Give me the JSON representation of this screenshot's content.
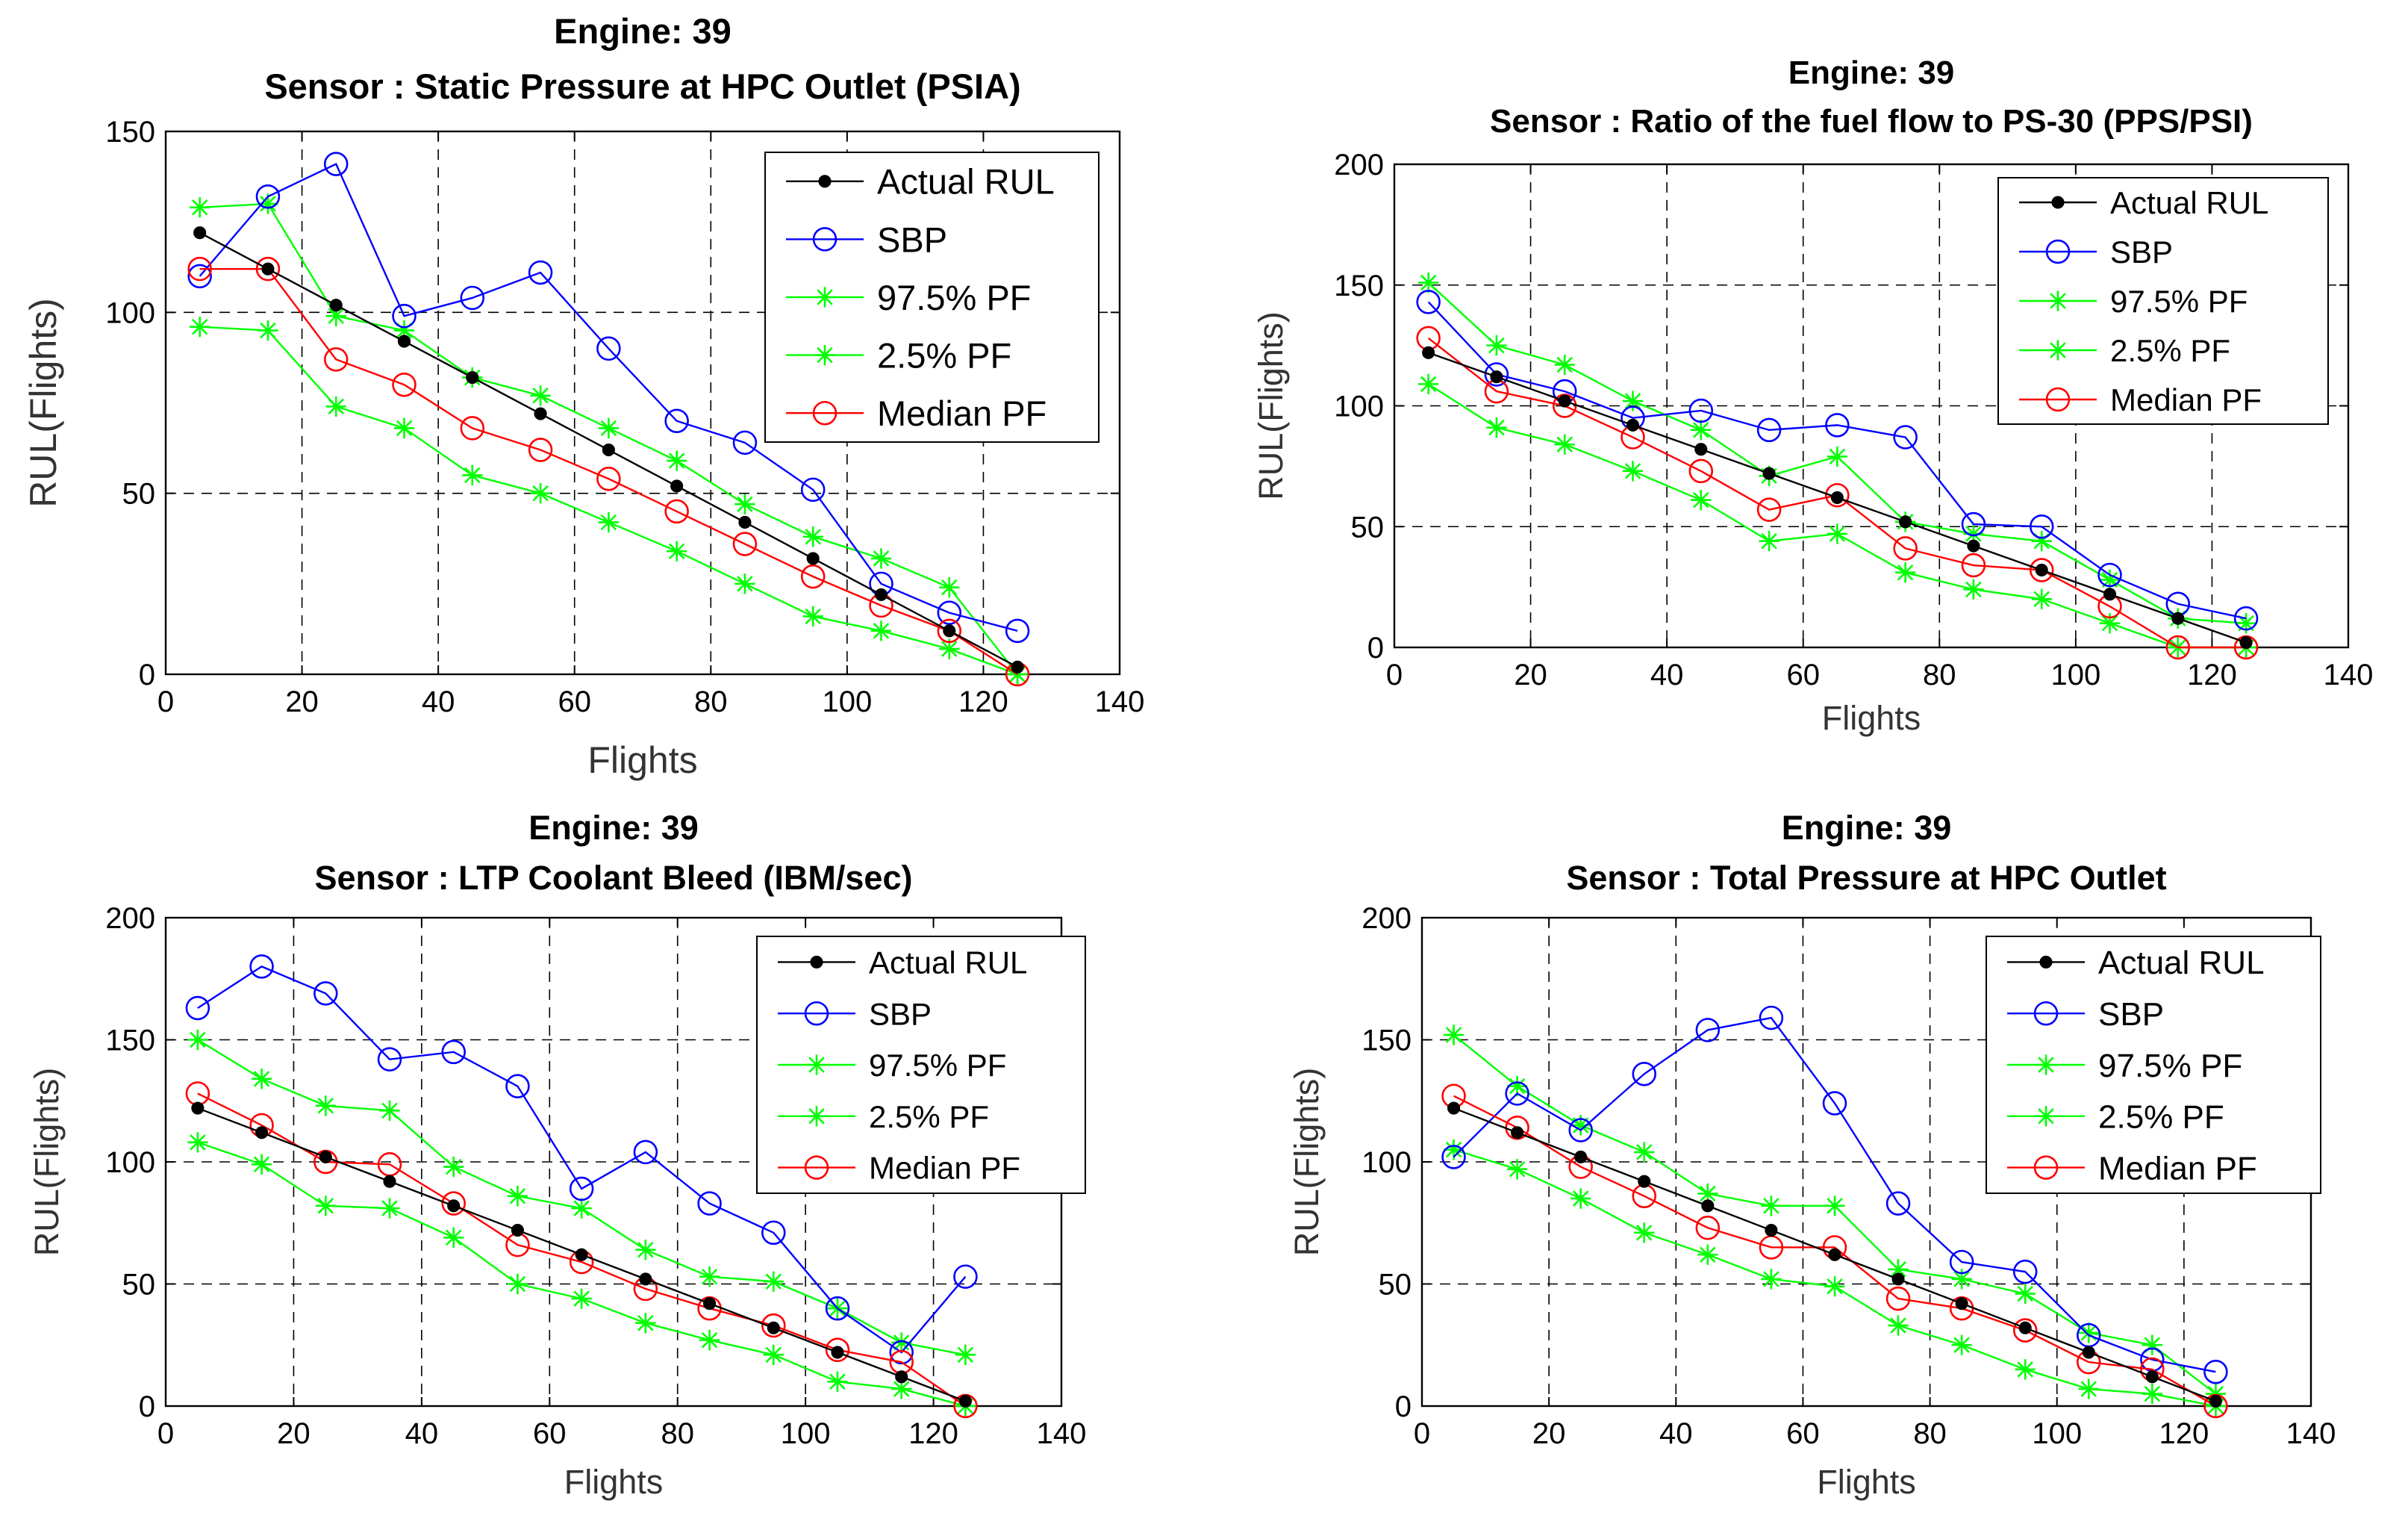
{
  "chart_data": [
    {
      "type": "line",
      "title": [
        "Engine: 39",
        "Sensor : Static Pressure at HPC Outlet (PSIA)"
      ],
      "xlabel": "Flights",
      "ylabel": "RUL(Flights)",
      "xlim": [
        0,
        140
      ],
      "ylim": [
        0,
        150
      ],
      "xticks": [
        0,
        20,
        40,
        60,
        80,
        100,
        120,
        140
      ],
      "yticks": [
        0,
        50,
        100,
        150
      ],
      "grid": true,
      "legend_position": "top-right",
      "x": [
        5,
        15,
        25,
        35,
        45,
        55,
        65,
        75,
        85,
        95,
        105,
        115,
        125
      ],
      "series": [
        {
          "name": "Actual RUL",
          "color": "#000000",
          "marker": "dot",
          "values": [
            122,
            112,
            102,
            92,
            82,
            72,
            62,
            52,
            42,
            32,
            22,
            12,
            2
          ]
        },
        {
          "name": "SBP",
          "color": "#0000ff",
          "marker": "circle",
          "values": [
            110,
            132,
            141,
            99,
            104,
            111,
            90,
            70,
            64,
            51,
            25,
            17,
            12
          ]
        },
        {
          "name": "97.5% PF",
          "color": "#00ff00",
          "marker": "star",
          "values": [
            129,
            130,
            99,
            95,
            82,
            77,
            68,
            59,
            47,
            38,
            32,
            24,
            0
          ]
        },
        {
          "name": "2.5% PF",
          "color": "#00ff00",
          "marker": "star",
          "values": [
            96,
            95,
            74,
            68,
            55,
            50,
            42,
            34,
            25,
            16,
            12,
            7,
            0
          ]
        },
        {
          "name": "Median PF",
          "color": "#ff0000",
          "marker": "circle",
          "values": [
            112,
            112,
            87,
            80,
            68,
            62,
            54,
            45,
            36,
            27,
            19,
            12,
            0
          ]
        }
      ]
    },
    {
      "type": "line",
      "title": [
        "Engine: 39",
        "Sensor : Ratio of the fuel flow to PS-30 (PPS/PSI)"
      ],
      "xlabel": "Flights",
      "ylabel": "RUL(Flights)",
      "xlim": [
        0,
        140
      ],
      "ylim": [
        0,
        200
      ],
      "xticks": [
        0,
        20,
        40,
        60,
        80,
        100,
        120,
        140
      ],
      "yticks": [
        0,
        50,
        100,
        150,
        200
      ],
      "grid": true,
      "legend_position": "top-right",
      "x": [
        5,
        15,
        25,
        35,
        45,
        55,
        65,
        75,
        85,
        95,
        105,
        115,
        125
      ],
      "series": [
        {
          "name": "Actual RUL",
          "color": "#000000",
          "marker": "dot",
          "values": [
            122,
            112,
            102,
            92,
            82,
            72,
            62,
            52,
            42,
            32,
            22,
            12,
            2
          ]
        },
        {
          "name": "SBP",
          "color": "#0000ff",
          "marker": "circle",
          "values": [
            143,
            113,
            106,
            95,
            98,
            90,
            92,
            87,
            51,
            50,
            30,
            18,
            12
          ]
        },
        {
          "name": "97.5% PF",
          "color": "#00ff00",
          "marker": "star",
          "values": [
            151,
            125,
            117,
            102,
            90,
            71,
            79,
            52,
            47,
            44,
            28,
            12,
            10
          ]
        },
        {
          "name": "2.5% PF",
          "color": "#00ff00",
          "marker": "star",
          "values": [
            109,
            91,
            84,
            73,
            61,
            44,
            47,
            31,
            24,
            20,
            10,
            0,
            0
          ]
        },
        {
          "name": "Median PF",
          "color": "#ff0000",
          "marker": "circle",
          "values": [
            128,
            106,
            100,
            87,
            73,
            57,
            63,
            41,
            34,
            32,
            17,
            0,
            0
          ]
        }
      ]
    },
    {
      "type": "line",
      "title": [
        "Engine: 39",
        "Sensor : LTP Coolant Bleed (IBM/sec)"
      ],
      "xlabel": "Flights",
      "ylabel": "RUL(Flights)",
      "xlim": [
        0,
        140
      ],
      "ylim": [
        0,
        200
      ],
      "xticks": [
        0,
        20,
        40,
        60,
        80,
        100,
        120,
        140
      ],
      "yticks": [
        0,
        50,
        100,
        150,
        200
      ],
      "grid": true,
      "legend_position": "top-right",
      "x": [
        5,
        15,
        25,
        35,
        45,
        55,
        65,
        75,
        85,
        95,
        105,
        115,
        125
      ],
      "series": [
        {
          "name": "Actual RUL",
          "color": "#000000",
          "marker": "dot",
          "values": [
            122,
            112,
            102,
            92,
            82,
            72,
            62,
            52,
            42,
            32,
            22,
            12,
            2
          ]
        },
        {
          "name": "SBP",
          "color": "#0000ff",
          "marker": "circle",
          "values": [
            163,
            180,
            169,
            142,
            145,
            131,
            89,
            104,
            83,
            71,
            40,
            22,
            53
          ]
        },
        {
          "name": "97.5% PF",
          "color": "#00ff00",
          "marker": "star",
          "values": [
            150,
            134,
            123,
            121,
            98,
            86,
            81,
            64,
            53,
            51,
            40,
            26,
            21
          ]
        },
        {
          "name": "2.5% PF",
          "color": "#00ff00",
          "marker": "star",
          "values": [
            108,
            99,
            82,
            81,
            69,
            50,
            44,
            34,
            27,
            21,
            10,
            7,
            0
          ]
        },
        {
          "name": "Median PF",
          "color": "#ff0000",
          "marker": "circle",
          "values": [
            128,
            115,
            100,
            99,
            83,
            66,
            59,
            48,
            40,
            33,
            23,
            18,
            0
          ]
        }
      ]
    },
    {
      "type": "line",
      "title": [
        "Engine: 39",
        "Sensor : Total Pressure at HPC Outlet"
      ],
      "xlabel": "Flights",
      "ylabel": "RUL(Flights)",
      "xlim": [
        0,
        140
      ],
      "ylim": [
        0,
        200
      ],
      "xticks": [
        0,
        20,
        40,
        60,
        80,
        100,
        120,
        140
      ],
      "yticks": [
        0,
        50,
        100,
        150,
        200
      ],
      "grid": true,
      "legend_position": "top-right",
      "x": [
        5,
        15,
        25,
        35,
        45,
        55,
        65,
        75,
        85,
        95,
        105,
        115,
        125
      ],
      "series": [
        {
          "name": "Actual RUL",
          "color": "#000000",
          "marker": "dot",
          "values": [
            122,
            112,
            102,
            92,
            82,
            72,
            62,
            52,
            42,
            32,
            22,
            12,
            2
          ]
        },
        {
          "name": "SBP",
          "color": "#0000ff",
          "marker": "circle",
          "values": [
            102,
            128,
            113,
            136,
            154,
            159,
            124,
            83,
            59,
            55,
            29,
            19,
            14
          ]
        },
        {
          "name": "97.5% PF",
          "color": "#00ff00",
          "marker": "star",
          "values": [
            152,
            131,
            115,
            104,
            87,
            82,
            82,
            56,
            52,
            46,
            30,
            25,
            5
          ]
        },
        {
          "name": "2.5% PF",
          "color": "#00ff00",
          "marker": "star",
          "values": [
            105,
            97,
            85,
            71,
            62,
            52,
            49,
            33,
            25,
            15,
            7,
            5,
            0
          ]
        },
        {
          "name": "Median PF",
          "color": "#ff0000",
          "marker": "circle",
          "values": [
            127,
            114,
            98,
            86,
            73,
            65,
            65,
            44,
            40,
            31,
            18,
            15,
            0
          ]
        }
      ]
    }
  ]
}
